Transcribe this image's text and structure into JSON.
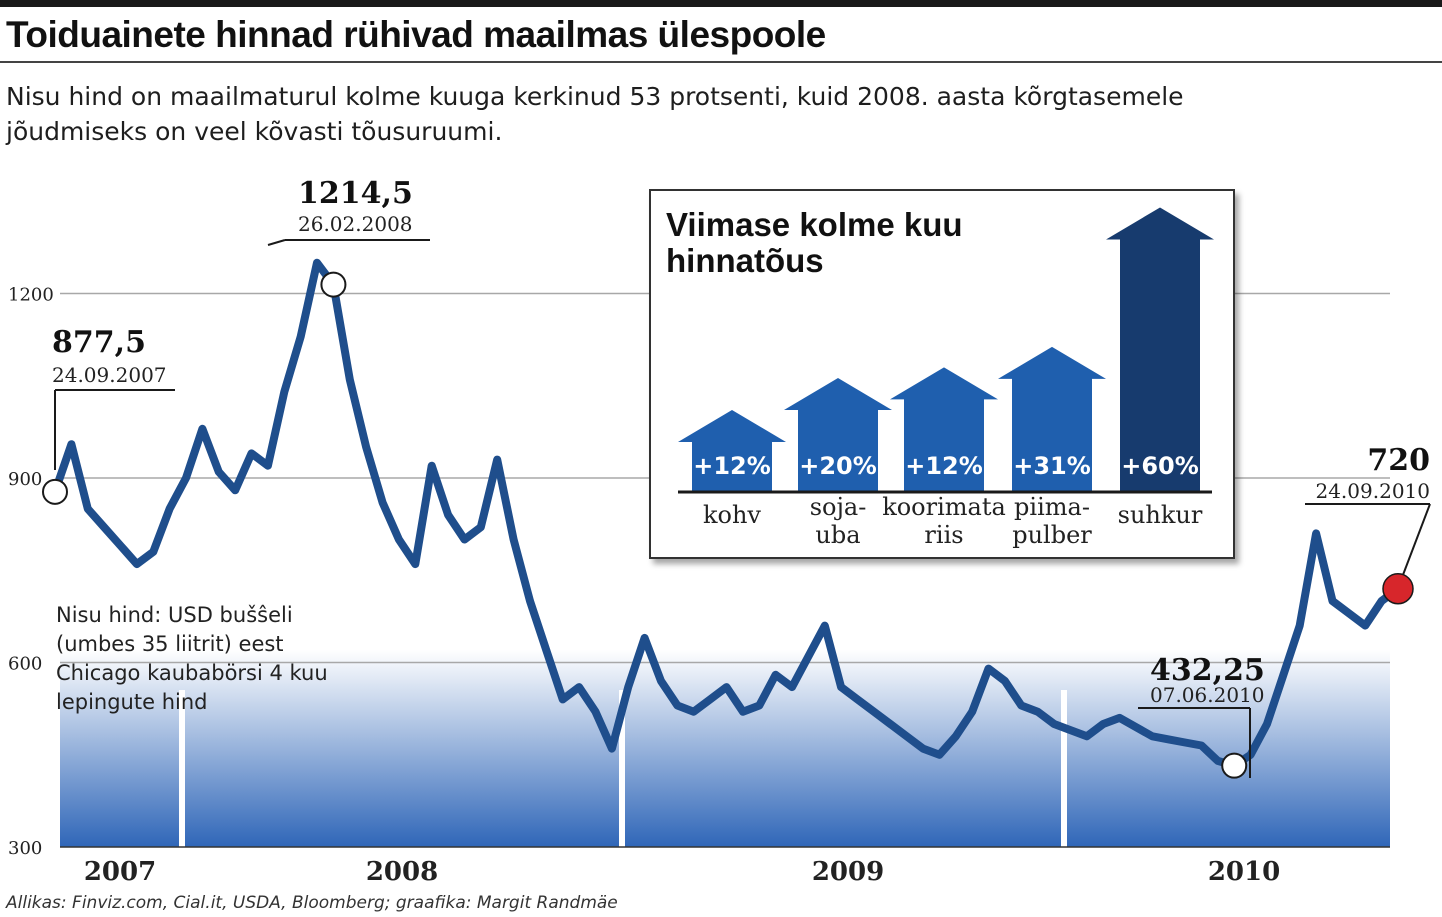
{
  "header": {
    "title": "Toiduainete hinnad rühivad maailmas ülespoole",
    "subtitle": "Nisu hind on maailmaturul kolme kuuga kerkinud 53 protsenti, kuid 2008. aasta kõrgtasemele jõudmiseks on veel kõvasti tõusuruumi."
  },
  "source": "Allikas: Finviz.com, Cial.it, USDA, Bloomberg; graafika: Margit Randmäe",
  "chart_data": [
    {
      "type": "line",
      "title": "",
      "xlabel": "",
      "ylabel": "",
      "y_ticks": [
        "300",
        "600",
        "900",
        "1200"
      ],
      "ylim": [
        300,
        1300
      ],
      "x_tick_labels": [
        "2007",
        "2008",
        "2009",
        "2010"
      ],
      "series_note": "Nisu hind: USD bušŝeli (umbes 35 liitrit) eest Chicago kaubabörsi 4 kuu lepingute hind",
      "line_color": "#1f4e8c",
      "area_gradient": [
        "#ffffff",
        "#2f66b8"
      ],
      "series": [
        {
          "values": [
            877.5,
            955,
            850,
            820,
            790,
            760,
            780,
            850,
            900,
            980,
            910,
            880,
            940,
            920,
            1040,
            1130,
            1250,
            1214.5,
            1060,
            950,
            860,
            800,
            760,
            920,
            840,
            800,
            820,
            930,
            800,
            700,
            620,
            540,
            560,
            520,
            460,
            560,
            640,
            570,
            530,
            520,
            540,
            560,
            520,
            530,
            580,
            560,
            610,
            660,
            560,
            540,
            520,
            500,
            480,
            460,
            450,
            480,
            520,
            590,
            570,
            530,
            520,
            500,
            490,
            480,
            500,
            510,
            495,
            480,
            475,
            470,
            465,
            440,
            432.25,
            450,
            500,
            580,
            660,
            810,
            700,
            680,
            660,
            700,
            720
          ]
        }
      ],
      "annotations": [
        {
          "value": "877,5",
          "date": "24.09.2007"
        },
        {
          "value": "1214,5",
          "date": "26.02.2008"
        },
        {
          "value": "432,25",
          "date": "07.06.2010"
        },
        {
          "value": "720",
          "date": "24.09.2010"
        }
      ]
    },
    {
      "type": "bar",
      "title": "Viimase kolme kuu hinnatõus",
      "categories": [
        "kohv",
        "soja-uba",
        "koorimata riis",
        "piima-pulber",
        "suhkur"
      ],
      "category_lines": [
        [
          "kohv"
        ],
        [
          "soja-",
          "uba"
        ],
        [
          "koorimata",
          "riis"
        ],
        [
          "piima-",
          "pulber"
        ],
        [
          "suhkur"
        ]
      ],
      "labels": [
        "+12%",
        "+20%",
        "+12%",
        "+31%",
        "+60%"
      ],
      "values": [
        12,
        20,
        12,
        31,
        60
      ],
      "colors": [
        "#1f5fae",
        "#1f5fae",
        "#1f5fae",
        "#1f5fae",
        "#173b6e"
      ],
      "arrow_height_units": [
        1.0,
        1.39,
        1.52,
        1.77,
        3.47
      ]
    }
  ]
}
